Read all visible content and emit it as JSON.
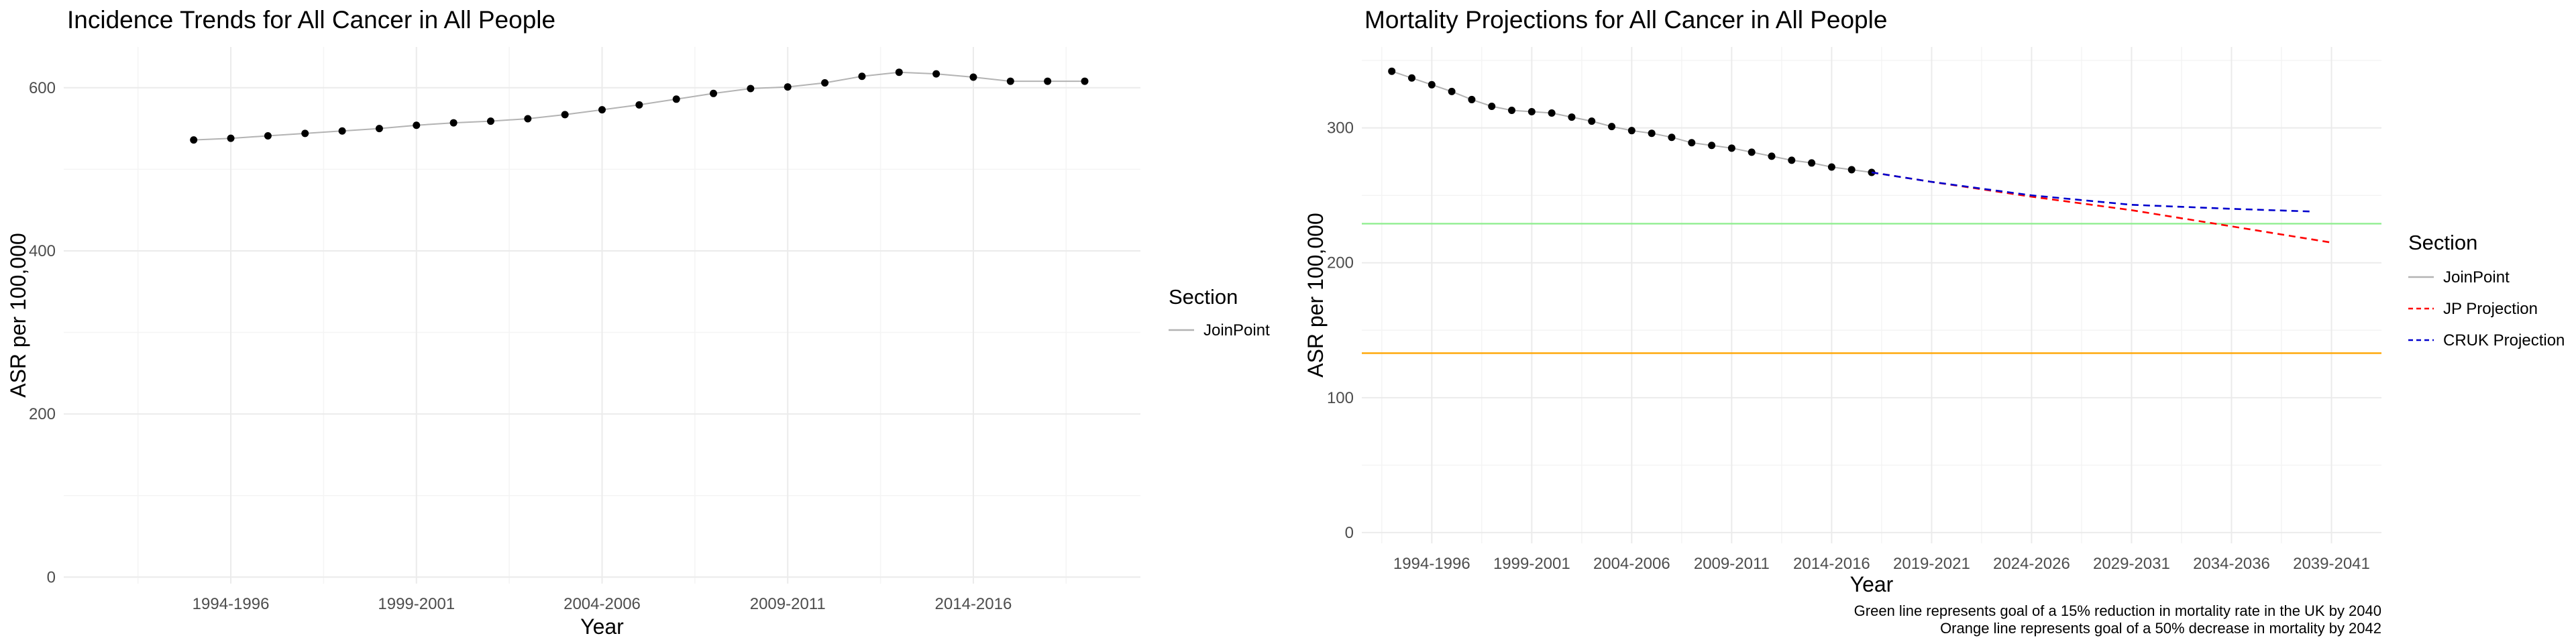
{
  "chart_data": [
    {
      "type": "line",
      "title": "Incidence Trends for All Cancer in All People",
      "xlabel": "Year",
      "ylabel": "ASR per 100,000",
      "xlim": [
        1990.5,
        2019.5
      ],
      "ylim": [
        -8,
        650
      ],
      "x_ticks": [
        1995,
        2000,
        2005,
        2010,
        2015
      ],
      "x_tick_labels": [
        "1994-1996",
        "1999-2001",
        "2004-2006",
        "2009-2011",
        "2014-2016"
      ],
      "y_ticks": [
        0,
        200,
        400,
        600
      ],
      "y_tick_labels": [
        "0",
        "200",
        "400",
        "600"
      ],
      "grid": true,
      "legend": {
        "title": "Section",
        "position": "right",
        "entries": [
          {
            "label": "JoinPoint",
            "color": "#b3b3b3",
            "dash": "solid"
          }
        ]
      },
      "series": [
        {
          "name": "JoinPoint",
          "color": "#b3b3b3",
          "x": [
            1994,
            1995,
            1996,
            1997,
            1998,
            1999,
            2000,
            2001,
            2002,
            2003,
            2004,
            2005,
            2006,
            2007,
            2008,
            2009,
            2010,
            2011,
            2012,
            2013,
            2014,
            2015,
            2016,
            2017,
            2018
          ],
          "y": [
            536,
            538,
            541,
            544,
            547,
            550,
            554,
            557,
            559,
            562,
            567,
            573,
            579,
            586,
            593,
            599,
            601,
            606,
            614,
            619,
            617,
            613,
            608,
            608,
            608
          ]
        }
      ]
    },
    {
      "type": "line",
      "title": "Mortality Projections for All Cancer in All People",
      "xlabel": "Year",
      "ylabel": "ASR per 100,000",
      "xlim": [
        1991.5,
        2042.5
      ],
      "ylim": [
        -8,
        360
      ],
      "x_ticks": [
        1995,
        2000,
        2005,
        2010,
        2015,
        2020,
        2025,
        2030,
        2035,
        2040
      ],
      "x_tick_labels": [
        "1994-1996",
        "1999-2001",
        "2004-2006",
        "2009-2011",
        "2014-2016",
        "2019-2021",
        "2024-2026",
        "2029-2031",
        "2034-2036",
        "2039-2041"
      ],
      "y_ticks": [
        0,
        100,
        200,
        300
      ],
      "y_tick_labels": [
        "0",
        "100",
        "200",
        "300"
      ],
      "grid": true,
      "hlines": [
        {
          "y": 229,
          "color": "#90ee90"
        },
        {
          "y": 133,
          "color": "#ffa500"
        }
      ],
      "legend": {
        "title": "Section",
        "position": "right",
        "entries": [
          {
            "label": "JoinPoint",
            "color": "#b3b3b3",
            "dash": "solid"
          },
          {
            "label": "JP Projection",
            "color": "#ff0000",
            "dash": "dashed"
          },
          {
            "label": "CRUK Projection",
            "color": "#0000cd",
            "dash": "dashed"
          }
        ]
      },
      "series": [
        {
          "name": "JoinPoint",
          "color": "#b3b3b3",
          "x": [
            1993,
            1994,
            1995,
            1996,
            1997,
            1998,
            1999,
            2000,
            2001,
            2002,
            2003,
            2004,
            2005,
            2006,
            2007,
            2008,
            2009,
            2010,
            2011,
            2012,
            2013,
            2014,
            2015,
            2016,
            2017
          ],
          "y": [
            342,
            337,
            332,
            327,
            321,
            316,
            313,
            312,
            311,
            308,
            305,
            301,
            298,
            296,
            293,
            289,
            287,
            285,
            282,
            279,
            276,
            274,
            271,
            269,
            267
          ]
        },
        {
          "name": "JP Projection",
          "color": "#ff0000",
          "x": [
            2017,
            2020,
            2025,
            2030,
            2035,
            2040
          ],
          "y": [
            267,
            260,
            249,
            239,
            227,
            215
          ]
        },
        {
          "name": "CRUK Projection",
          "color": "#0000cd",
          "x": [
            2017,
            2020,
            2025,
            2030,
            2035,
            2039
          ],
          "y": [
            267,
            260,
            250,
            243,
            240,
            238
          ]
        }
      ],
      "captions": [
        "Green line represents goal of a 15% reduction in mortality rate in the UK by 2040",
        "Orange line represents goal of a 50% decrease in mortality by 2042"
      ]
    }
  ]
}
